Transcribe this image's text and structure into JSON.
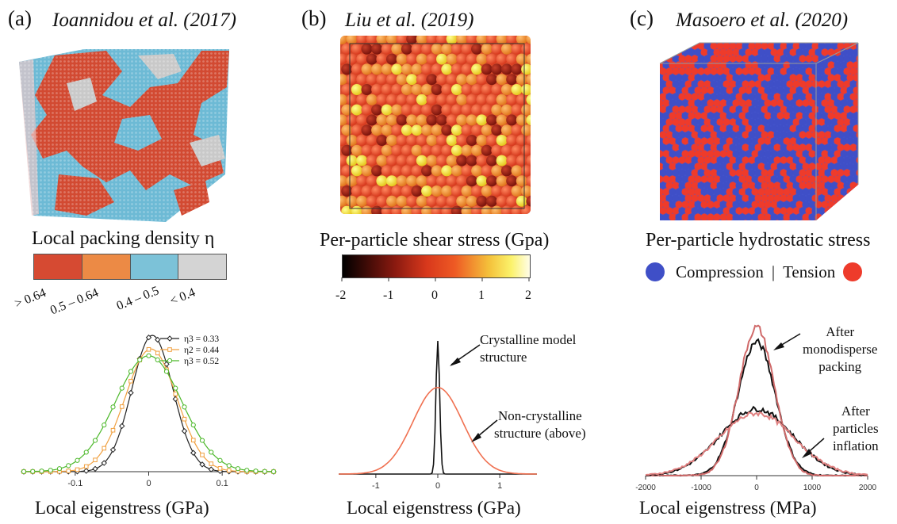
{
  "panels": [
    {
      "label": "(a)",
      "citation": "Ioannidou et al. (2017)",
      "colorbar_title": "Local packing density η",
      "colorbar": [
        {
          "label": "> 0.64",
          "color": "#d64a32"
        },
        {
          "label": "0.5 – 0.64",
          "color": "#ec8a45"
        },
        {
          "label": "0.4 – 0.5",
          "color": "#7cc2d8"
        },
        {
          "label": "< 0.4",
          "color": "#d4d4d4"
        }
      ]
    },
    {
      "label": "(b)",
      "citation": "Liu et al. (2019)",
      "colorbar_title": "Per-particle shear stress (Gpa)",
      "colorbar_ticks": [
        "-2",
        "-1",
        "0",
        "1",
        "2"
      ]
    },
    {
      "label": "(c)",
      "citation": "Masoero et al. (2020)",
      "legend_title": "Per-particle hydrostatic stress",
      "legend_left": "Compression",
      "legend_sep": "|",
      "legend_right": "Tension",
      "compression_color": "#3f4fc7",
      "tension_color": "#ee3b2b"
    }
  ],
  "chart_data": [
    {
      "type": "line",
      "xlabel": "Local eigenstress (GPa)",
      "x_ticks": [
        "-0.1",
        "0",
        "0.1"
      ],
      "xlim": [
        -0.17,
        0.17
      ],
      "series": [
        {
          "name": "η3 = 0.33",
          "color": "#222222",
          "marker": "diamond",
          "peak_x": 0.005,
          "peak_y": 1.0,
          "sigma": 0.028
        },
        {
          "name": "η2 = 0.44",
          "color": "#f0a040",
          "marker": "square",
          "peak_x": 0.003,
          "peak_y": 0.9,
          "sigma": 0.035
        },
        {
          "name": "η3 = 0.52",
          "color": "#4cb82a",
          "marker": "circle",
          "peak_x": 0.0,
          "peak_y": 0.85,
          "sigma": 0.045
        }
      ]
    },
    {
      "type": "line",
      "xlabel": "Local eigenstress (GPa)",
      "x_ticks": [
        "-1",
        "0",
        "1"
      ],
      "xlim": [
        -1.6,
        1.6
      ],
      "annotations": [
        "Crystalline model structure",
        "Non-crystalline structure (above)"
      ],
      "series": [
        {
          "name": "Crystalline model structure",
          "color": "#111111",
          "peak_x": 0.0,
          "peak_y": 1.0,
          "sigma": 0.03
        },
        {
          "name": "Non-crystalline structure (above)",
          "color": "#f07050",
          "peak_x": 0.0,
          "peak_y": 0.65,
          "sigma": 0.4
        }
      ]
    },
    {
      "type": "line",
      "xlabel": "Local eigenstress (MPa)",
      "x_ticks": [
        "-2000",
        "-1000",
        "0",
        "1000",
        "2000"
      ],
      "xlim": [
        -2000,
        2000
      ],
      "annotations": [
        "After monodisperse packing",
        "After particles inflation"
      ],
      "series": [
        {
          "name": "After monodisperse packing",
          "color": "#111111",
          "peak_x": 0,
          "peak_y": 0.9,
          "sigma": 340
        },
        {
          "name": "After monodisperse packing",
          "color": "#d06a6a",
          "peak_x": 0,
          "peak_y": 1.0,
          "sigma": 320
        },
        {
          "name": "After particles inflation",
          "color": "#111111",
          "peak_x": 0,
          "peak_y": 0.45,
          "sigma": 650
        },
        {
          "name": "After particles inflation",
          "color": "#e08080",
          "peak_x": 0,
          "peak_y": 0.42,
          "sigma": 680
        }
      ]
    }
  ],
  "labels": {
    "crys_1": "Crystalline model",
    "crys_2": "structure",
    "noncrys_1": "Non-crystalline",
    "noncrys_2": "structure (above)",
    "mono_1": "After",
    "mono_2": "monodisperse",
    "mono_3": "packing",
    "infl_1": "After",
    "infl_2": "particles",
    "infl_3": "inflation"
  }
}
